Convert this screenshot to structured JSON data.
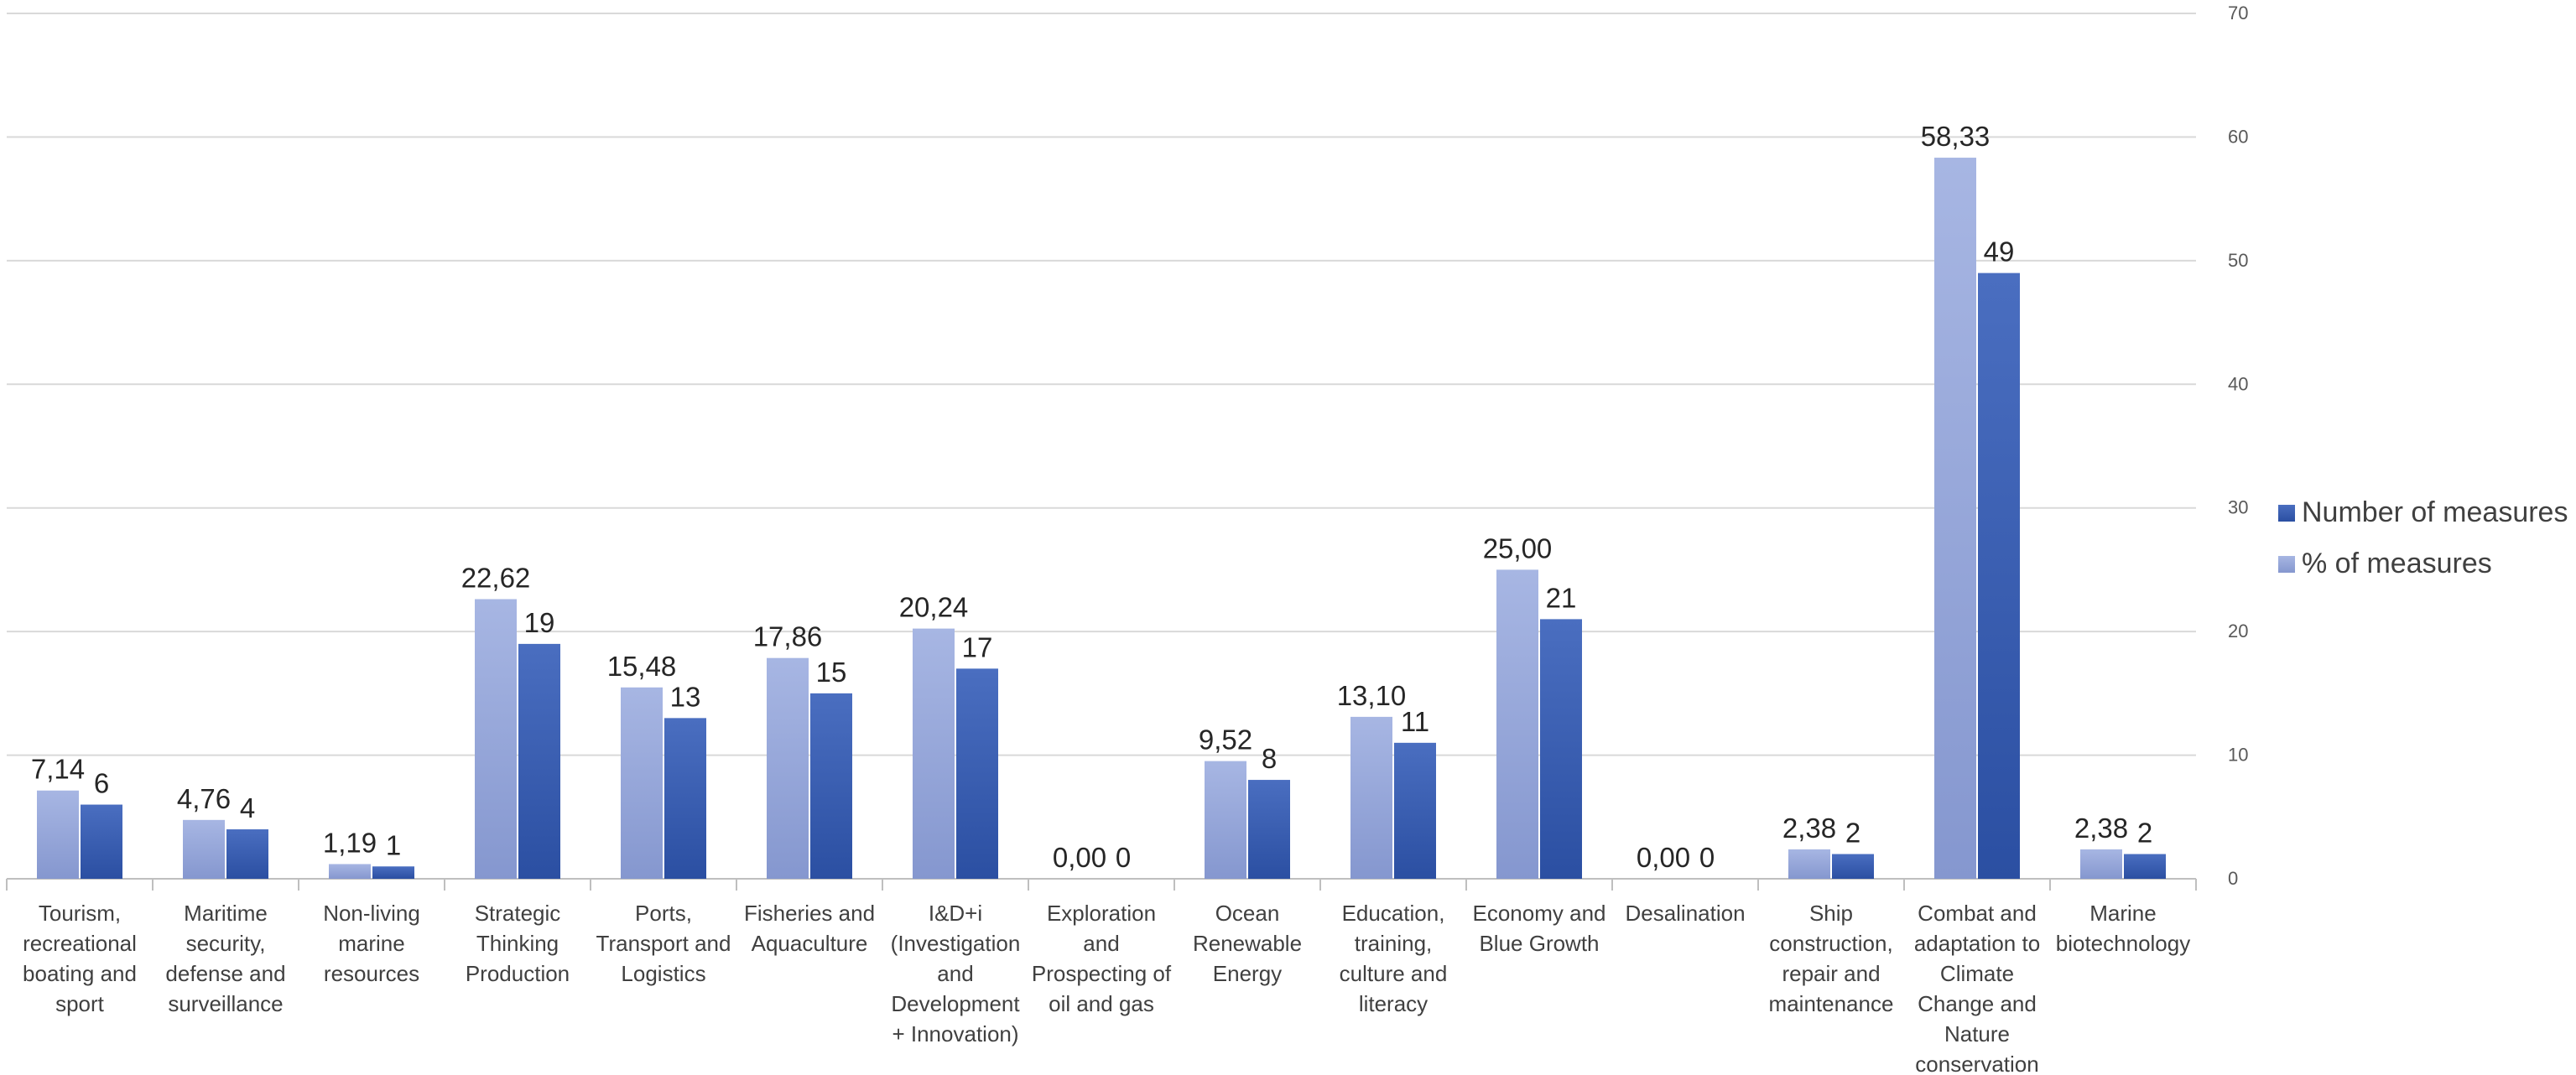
{
  "chart_data": {
    "type": "bar",
    "title": "",
    "xlabel": "",
    "ylabel": "",
    "ylim": [
      0,
      70
    ],
    "yticks": [
      0,
      10,
      20,
      30,
      40,
      50,
      60,
      70
    ],
    "grid": true,
    "legend_position": "right",
    "categories": [
      [
        "Tourism,",
        "recreational",
        "boating and",
        "sport"
      ],
      [
        "Maritime",
        "security,",
        "defense and",
        "surveillance"
      ],
      [
        "Non-living",
        "marine",
        "resources"
      ],
      [
        "Strategic",
        "Thinking",
        "Production"
      ],
      [
        "Ports,",
        "Transport and",
        "Logistics"
      ],
      [
        "Fisheries and",
        "Aquaculture"
      ],
      [
        "I&D+i",
        "(Investigation",
        "and",
        "Development",
        "+ Innovation)"
      ],
      [
        "Exploration",
        "and",
        "Prospecting of",
        "oil and gas"
      ],
      [
        "Ocean",
        "Renewable",
        "Energy"
      ],
      [
        "Education,",
        "training,",
        "culture and",
        "literacy"
      ],
      [
        "Economy and",
        "Blue Growth"
      ],
      [
        "Desalination"
      ],
      [
        "Ship",
        "construction,",
        "repair and",
        "maintenance"
      ],
      [
        "Combat and",
        "adaptation to",
        "Climate",
        "Change and",
        "Nature",
        "conservation"
      ],
      [
        "Marine",
        "biotechnology"
      ]
    ],
    "series": [
      {
        "name": "% of measures",
        "color": "#9aaadb",
        "values": [
          7.14,
          4.76,
          1.19,
          22.62,
          15.48,
          17.86,
          20.24,
          0.0,
          9.52,
          13.1,
          25.0,
          0.0,
          2.38,
          58.33,
          2.38
        ],
        "labels": [
          "7,14",
          "4,76",
          "1,19",
          "22,62",
          "15,48",
          "17,86",
          "20,24",
          "0,00",
          "9,52",
          "13,10",
          "25,00",
          "0,00",
          "2,38",
          "58,33",
          "2,38"
        ]
      },
      {
        "name": "Number of measures",
        "color": "#3a5fb4",
        "values": [
          6,
          4,
          1,
          19,
          13,
          15,
          17,
          0,
          8,
          11,
          21,
          0,
          2,
          49,
          2
        ],
        "labels": [
          "6",
          "4",
          "1",
          "19",
          "13",
          "15",
          "17",
          "0",
          "8",
          "11",
          "21",
          "0",
          "2",
          "49",
          "2"
        ]
      }
    ],
    "legend": [
      "Number of measures",
      "% of measures"
    ]
  }
}
